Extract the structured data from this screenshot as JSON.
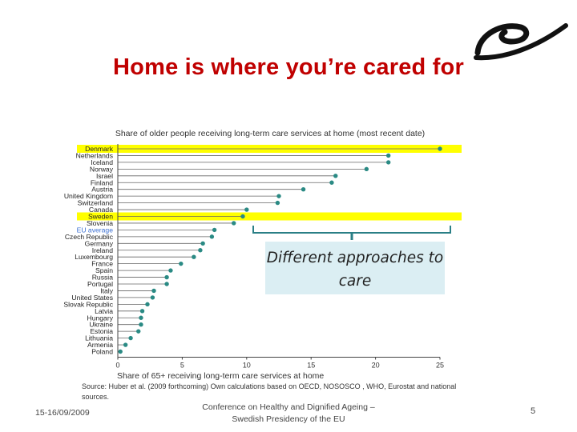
{
  "slide": {
    "title": "Home is where you’re cared for",
    "callout": "Different approaches to care",
    "source": "Source: Huber et al. (2009 forthcoming) Own calculations based on OECD, NOSOSCO , WHO, Eurostat and national sources.",
    "footer_date": "15-16/09/2009",
    "footer_conference": "Conference on Healthy and Dignified Ageing – Swedish Presidency of the EU",
    "page_number": "5",
    "logo_icon": "eu-presidency-logo-icon"
  },
  "colors": {
    "title": "#c00000",
    "highlight": "#ffff00",
    "dot": "#2a8a84",
    "eu_label": "#3b6fd1",
    "callout_bg": "#dbeef3",
    "bracket": "#2a7f86"
  },
  "chart_data": {
    "type": "scatter",
    "title": "Share of older people receiving long-term care services at home (most recent date)",
    "xlabel": "Share of 65+ receiving long-term care services at home",
    "ylabel": "",
    "xlim": [
      0,
      25
    ],
    "x_ticks": [
      0,
      5,
      10,
      15,
      20,
      25
    ],
    "grid": false,
    "highlighted": [
      "Denmark",
      "Sweden"
    ],
    "emphasized_label": "EU average",
    "categories": [
      "Denmark",
      "Netherlands",
      "Iceland",
      "Norway",
      "Israel",
      "Finland",
      "Austria",
      "United Kingdom",
      "Switzerland",
      "Canada",
      "Sweden",
      "Slovenia",
      "EU average",
      "Czech Republic",
      "Germany",
      "Ireland",
      "Luxembourg",
      "France",
      "Spain",
      "Russia",
      "Portugal",
      "Italy",
      "United States",
      "Slovak Republic",
      "Latvia",
      "Hungary",
      "Ukraine",
      "Estonia",
      "Lithuania",
      "Armenia",
      "Poland"
    ],
    "values": [
      25.0,
      21.0,
      21.0,
      19.3,
      16.9,
      16.6,
      14.4,
      12.5,
      12.4,
      10.0,
      9.7,
      9.0,
      7.5,
      7.3,
      6.6,
      6.4,
      5.9,
      4.9,
      4.1,
      3.8,
      3.8,
      2.8,
      2.7,
      2.3,
      1.9,
      1.8,
      1.8,
      1.6,
      1.0,
      0.6,
      0.2
    ]
  }
}
